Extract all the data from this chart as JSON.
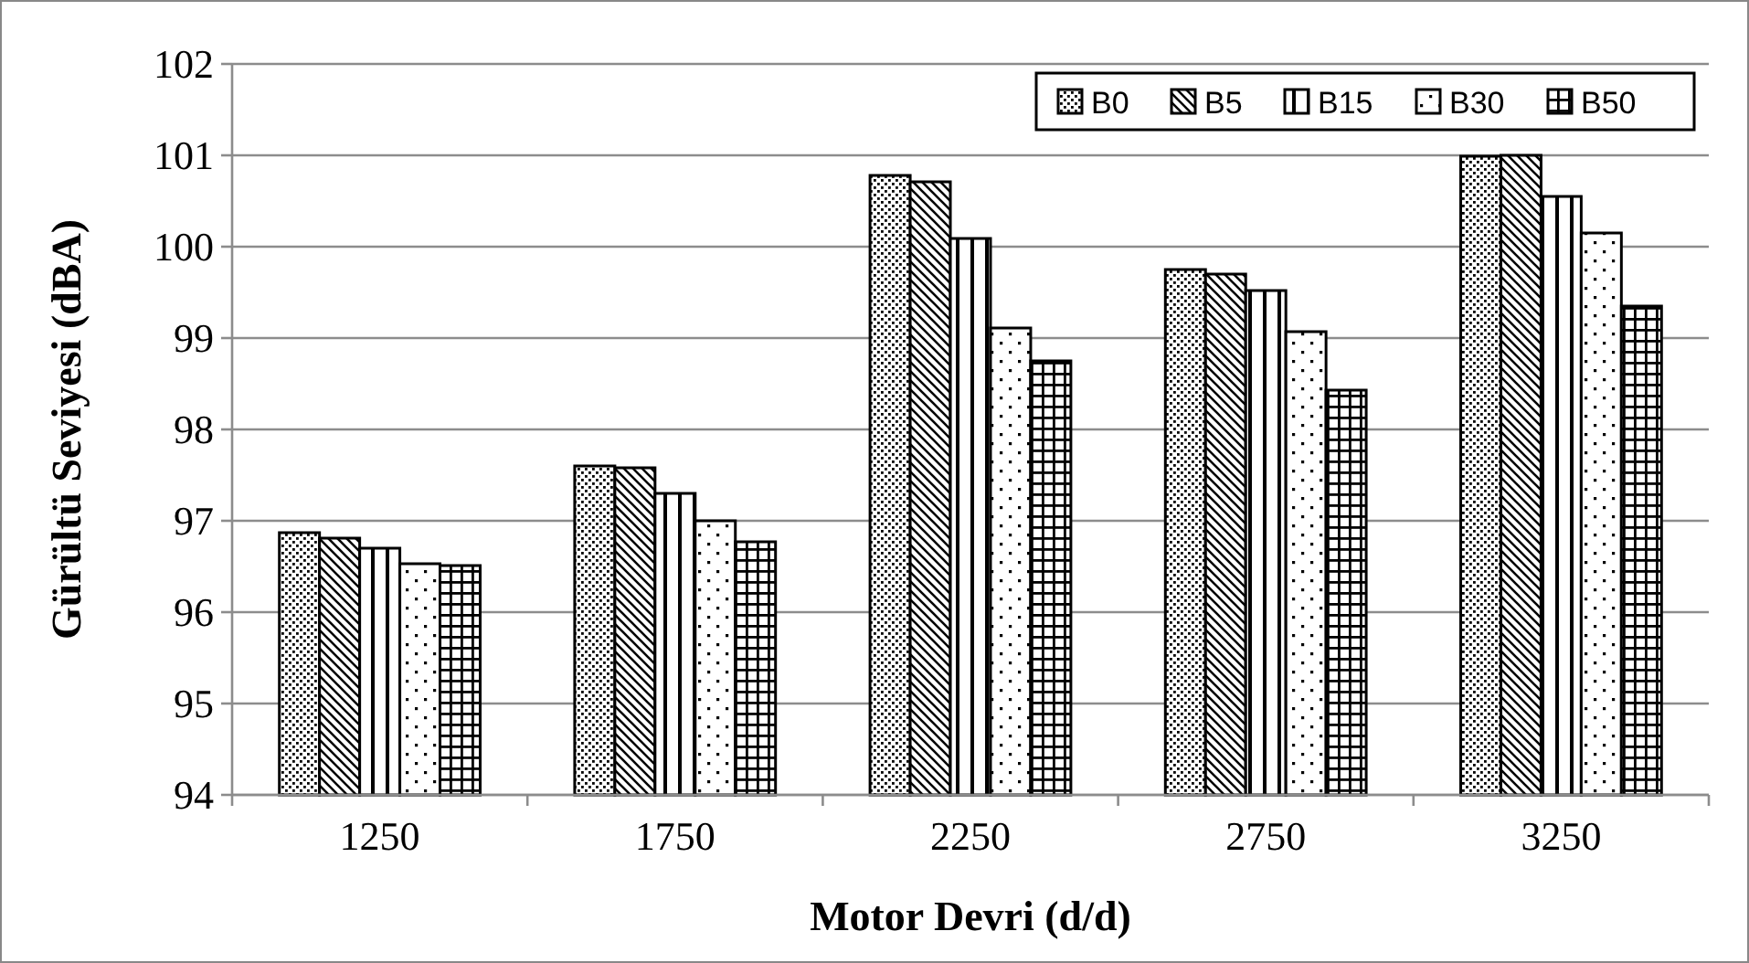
{
  "chart_data": {
    "type": "bar",
    "xlabel": "Motor Devri (d/d)",
    "ylabel": "Gürültü Seviyesi (dBA)",
    "categories": [
      "1250",
      "1750",
      "2250",
      "2750",
      "3250"
    ],
    "series": [
      {
        "name": "B0",
        "color": "#000000",
        "values": [
          96.87,
          97.6,
          100.78,
          99.75,
          100.99
        ]
      },
      {
        "name": "B5",
        "color": "#000000",
        "values": [
          96.81,
          97.58,
          100.71,
          99.7,
          101.0
        ]
      },
      {
        "name": "B15",
        "color": "#000000",
        "values": [
          96.7,
          97.3,
          100.09,
          99.52,
          100.55
        ]
      },
      {
        "name": "B30",
        "color": "#000000",
        "values": [
          96.53,
          97.0,
          99.11,
          99.07,
          100.15
        ]
      },
      {
        "name": "B50",
        "color": "#000000",
        "values": [
          96.51,
          96.77,
          98.75,
          98.43,
          99.35
        ]
      }
    ],
    "ylim": [
      94,
      102
    ],
    "yticks": [
      94,
      95,
      96,
      97,
      98,
      99,
      100,
      101,
      102
    ],
    "grid": "y",
    "legend": "top right"
  }
}
